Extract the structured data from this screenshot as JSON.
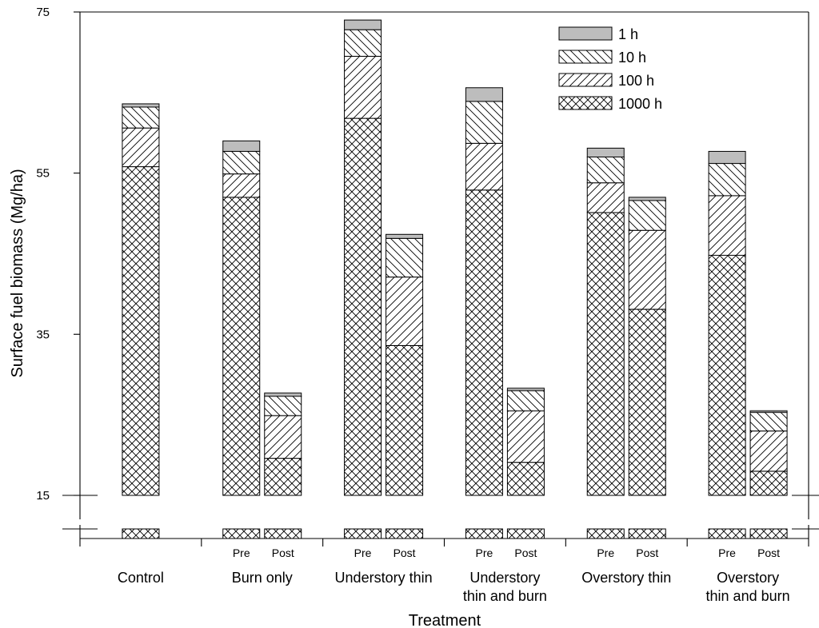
{
  "chart_data": {
    "type": "bar",
    "stacked": true,
    "ylabel": "Surface fuel biomass (Mg/ha)",
    "xlabel": "Treatment",
    "ylim": [
      15,
      75
    ],
    "axis_break": true,
    "yticks": [
      15,
      35,
      55,
      75
    ],
    "grid": false,
    "legend_position": "top-right",
    "series": [
      {
        "name": "1000 h",
        "pattern": "crosshatch"
      },
      {
        "name": "100 h",
        "pattern": "forward-diagonal"
      },
      {
        "name": "10 h",
        "pattern": "back-diagonal"
      },
      {
        "name": "1 h",
        "pattern": "solid-gray"
      }
    ],
    "groups": [
      {
        "name": "Control",
        "label_lines": [
          "Control"
        ],
        "bars": [
          {
            "label": "",
            "values": [
              55.8,
              4.8,
              2.6,
              0.4
            ]
          }
        ]
      },
      {
        "name": "Burn only",
        "label_lines": [
          "Burn only"
        ],
        "bars": [
          {
            "label": "Pre",
            "values": [
              52.0,
              2.9,
              2.8,
              1.3
            ]
          },
          {
            "label": "Post",
            "values": [
              19.6,
              5.3,
              2.4,
              0.4
            ]
          }
        ]
      },
      {
        "name": "Understory thin",
        "label_lines": [
          "Understory thin"
        ],
        "bars": [
          {
            "label": "Pre",
            "values": [
              61.8,
              7.7,
              3.3,
              1.2
            ]
          },
          {
            "label": "Post",
            "values": [
              33.6,
              8.5,
              4.8,
              0.5
            ]
          }
        ]
      },
      {
        "name": "Understory thin and burn",
        "label_lines": [
          "Understory",
          "thin and burn"
        ],
        "bars": [
          {
            "label": "Pre",
            "values": [
              52.9,
              5.8,
              5.2,
              1.7
            ]
          },
          {
            "label": "Post",
            "values": [
              19.1,
              6.4,
              2.5,
              0.3
            ]
          }
        ]
      },
      {
        "name": "Overstory thin",
        "label_lines": [
          "Overstory thin"
        ],
        "bars": [
          {
            "label": "Pre",
            "values": [
              50.1,
              3.7,
              3.2,
              1.1
            ]
          },
          {
            "label": "Post",
            "values": [
              38.1,
              9.8,
              3.7,
              0.4
            ]
          }
        ]
      },
      {
        "name": "Overstory thin and burn",
        "label_lines": [
          "Overstory",
          "thin and burn"
        ],
        "bars": [
          {
            "label": "Pre",
            "values": [
              44.8,
              7.4,
              4.0,
              1.5
            ]
          },
          {
            "label": "Post",
            "values": [
              18.0,
              5.0,
              2.3,
              0.2
            ]
          }
        ]
      }
    ]
  }
}
